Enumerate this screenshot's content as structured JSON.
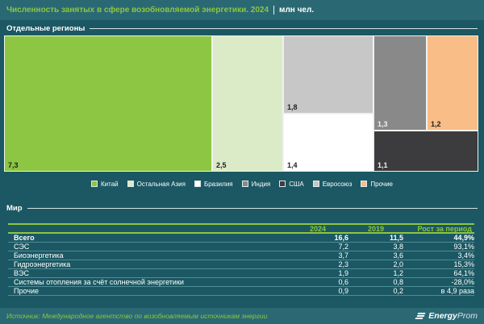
{
  "header": {
    "title": "Численность занятых в сфере возобновляемой энергетики. 2024",
    "unit": "млн чел."
  },
  "sections": {
    "regions": "Отдельные регионы",
    "world": "Мир"
  },
  "theme": {
    "background": "#1B5863",
    "band": "#2A6974",
    "accent_green": "#8DC63F",
    "row_line": "#4C8D98"
  },
  "chart_data": [
    {
      "type": "treemap",
      "title": "Отдельные регионы",
      "unit": "млн чел.",
      "legend_position": "bottom",
      "regions": [
        {
          "name": "Китай",
          "value": 7.3,
          "label": "7,3",
          "color": "#8CC642"
        },
        {
          "name": "Остальная Азия",
          "value": 2.5,
          "label": "2,5",
          "color": "#DBEBC8"
        },
        {
          "name": "Бразилия",
          "value": 1.4,
          "label": "1,4",
          "color": "#FFFFFF"
        },
        {
          "name": "Индия",
          "value": 1.3,
          "label": "1,3",
          "color": "#898989"
        },
        {
          "name": "США",
          "value": 1.1,
          "label": "1,1",
          "color": "#3C3C3E"
        },
        {
          "name": "Евросоюз",
          "value": 1.8,
          "label": "1,8",
          "color": "#C7C7C7"
        },
        {
          "name": "Прочие",
          "value": 1.2,
          "label": "1,2",
          "color": "#F9BD87"
        }
      ]
    },
    {
      "type": "table",
      "title": "Мир",
      "columns": [
        "2024",
        "2019",
        "Рост за период"
      ],
      "rows": [
        {
          "label": "Всего",
          "v2024": "16,6",
          "v2019": "11,5",
          "growth": "44,9%"
        },
        {
          "label": "СЭС",
          "v2024": "7,2",
          "v2019": "3,8",
          "growth": "93,1%"
        },
        {
          "label": "Биоэнергетика",
          "v2024": "3,7",
          "v2019": "3,6",
          "growth": "3,4%"
        },
        {
          "label": "Гидроэнергетика",
          "v2024": "2,3",
          "v2019": "2,0",
          "growth": "15,3%"
        },
        {
          "label": "ВЭС",
          "v2024": "1,9",
          "v2019": "1,2",
          "growth": "64,1%"
        },
        {
          "label": "Системы отопления за счёт солнечной энергетики",
          "v2024": "0,6",
          "v2019": "0,8",
          "growth": "-28,0%"
        },
        {
          "label": "Прочие",
          "v2024": "0,9",
          "v2019": "0,2",
          "growth": "в 4,9 раза"
        }
      ]
    }
  ],
  "footer": {
    "source": "Источник: Международное агентство по возобновляемым источникам энергии",
    "logo_bold": "Energy",
    "logo_light": "Prom"
  }
}
